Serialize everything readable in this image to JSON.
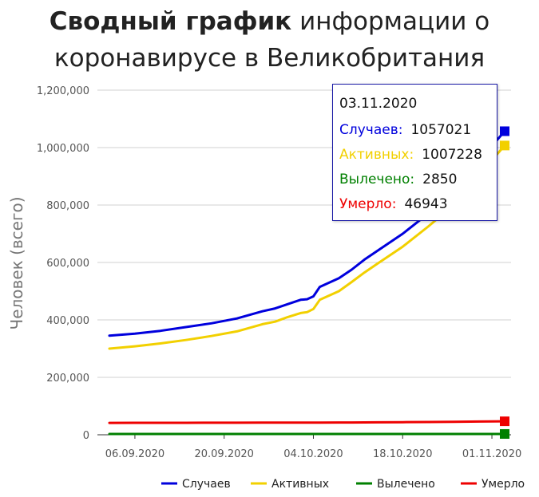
{
  "title": {
    "bold": "Сводный график",
    "line1_rest": "информации о",
    "line2": "коронавирусе в Великобритания"
  },
  "colors": {
    "cases": "#0000dd",
    "active": "#f2d000",
    "recovered": "#008000",
    "deaths": "#ee0000",
    "grid": "#d0d0d0"
  },
  "chart_data": {
    "type": "line",
    "ylabel": "Человек (всего)",
    "ylim": [
      0,
      1200000
    ],
    "yticks": [
      0,
      200000,
      400000,
      600000,
      800000,
      1000000,
      1200000
    ],
    "ytick_labels": [
      "0",
      "200,000",
      "400,000",
      "600,000",
      "800,000",
      "1,000,000",
      "1,200,000"
    ],
    "xticks": [
      "06.09.2020",
      "20.09.2020",
      "04.10.2020",
      "18.10.2020",
      "01.11.2020"
    ],
    "x": [
      "02.09.2020",
      "06.09.2020",
      "10.09.2020",
      "14.09.2020",
      "18.09.2020",
      "22.09.2020",
      "26.09.2020",
      "28.09.2020",
      "30.09.2020",
      "02.10.2020",
      "03.10.2020",
      "04.10.2020",
      "05.10.2020",
      "08.10.2020",
      "10.10.2020",
      "12.10.2020",
      "14.10.2020",
      "18.10.2020",
      "22.10.2020",
      "26.10.2020",
      "30.10.2020",
      "03.11.2020"
    ],
    "series": [
      {
        "name": "Случаев",
        "color_key": "cases",
        "values": [
          345000,
          352000,
          362000,
          375000,
          388000,
          405000,
          430000,
          440000,
          455000,
          470000,
          472000,
          482000,
          515000,
          545000,
          575000,
          610000,
          640000,
          700000,
          770000,
          850000,
          955000,
          1057021
        ]
      },
      {
        "name": "Активных",
        "color_key": "active",
        "values": [
          300000,
          308000,
          318000,
          330000,
          344000,
          360000,
          385000,
          394000,
          410000,
          424000,
          427000,
          438000,
          470000,
          500000,
          532000,
          565000,
          595000,
          655000,
          725000,
          800000,
          905000,
          1007228
        ]
      },
      {
        "name": "Вылечено",
        "color_key": "recovered",
        "values": [
          2850,
          2850,
          2850,
          2850,
          2850,
          2850,
          2850,
          2850,
          2850,
          2850,
          2850,
          2850,
          2850,
          2850,
          2850,
          2850,
          2850,
          2850,
          2850,
          2850,
          2850,
          2850
        ]
      },
      {
        "name": "Умерло",
        "color_key": "deaths",
        "values": [
          41500,
          41600,
          41700,
          41800,
          41900,
          42000,
          42100,
          42150,
          42200,
          42300,
          42350,
          42400,
          42500,
          42700,
          42900,
          43100,
          43300,
          43800,
          44400,
          45100,
          46000,
          46943
        ]
      }
    ],
    "legend_position": "bottom-right",
    "grid": true
  },
  "tooltip": {
    "date": "03.11.2020",
    "rows": [
      {
        "label": "Случаев:",
        "value": "1057021",
        "color_key": "cases"
      },
      {
        "label": "Активных:",
        "value": "1007228",
        "color_key": "active"
      },
      {
        "label": "Вылечено:",
        "value": "2850",
        "color_key": "recovered"
      },
      {
        "label": "Умерло:",
        "value": "46943",
        "color_key": "deaths"
      }
    ]
  }
}
